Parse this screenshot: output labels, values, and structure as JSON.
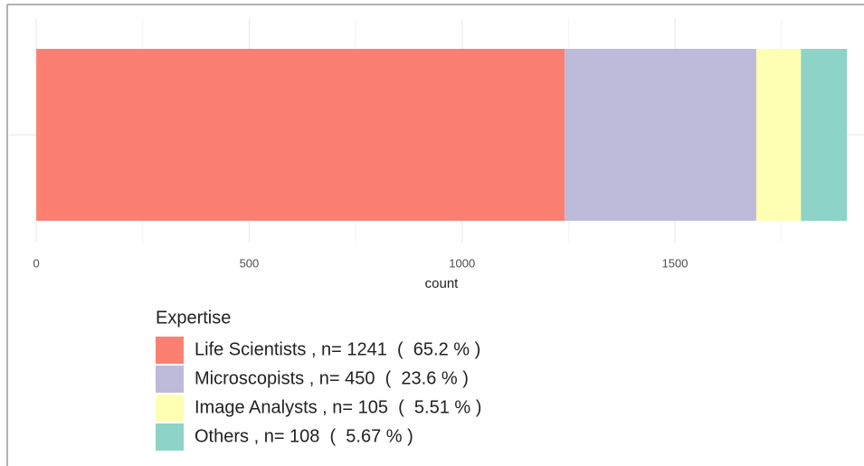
{
  "chart_data": {
    "type": "stacked_barh",
    "xlabel": "count",
    "xlim": [
      -64,
      1944
    ],
    "xticks": [
      0,
      500,
      1000,
      1500
    ],
    "xminor": [
      250,
      750,
      1250,
      1750
    ],
    "grid": true,
    "legend_title": "Expertise",
    "legend": "bottom-left",
    "series": [
      {
        "name": "Life Scientists , n= 1241  (  65.2 % )",
        "color": "#fb8072",
        "values": [
          1241
        ]
      },
      {
        "name": "Microscopists , n= 450  (  23.6 % )",
        "color": "#bebada",
        "values": [
          450
        ]
      },
      {
        "name": "Image Analysts , n= 105  (  5.51 % )",
        "color": "#ffffb3",
        "values": [
          105
        ]
      },
      {
        "name": "Others , n= 108  (  5.67 % )",
        "color": "#8dd3c7",
        "values": [
          108
        ]
      }
    ]
  }
}
